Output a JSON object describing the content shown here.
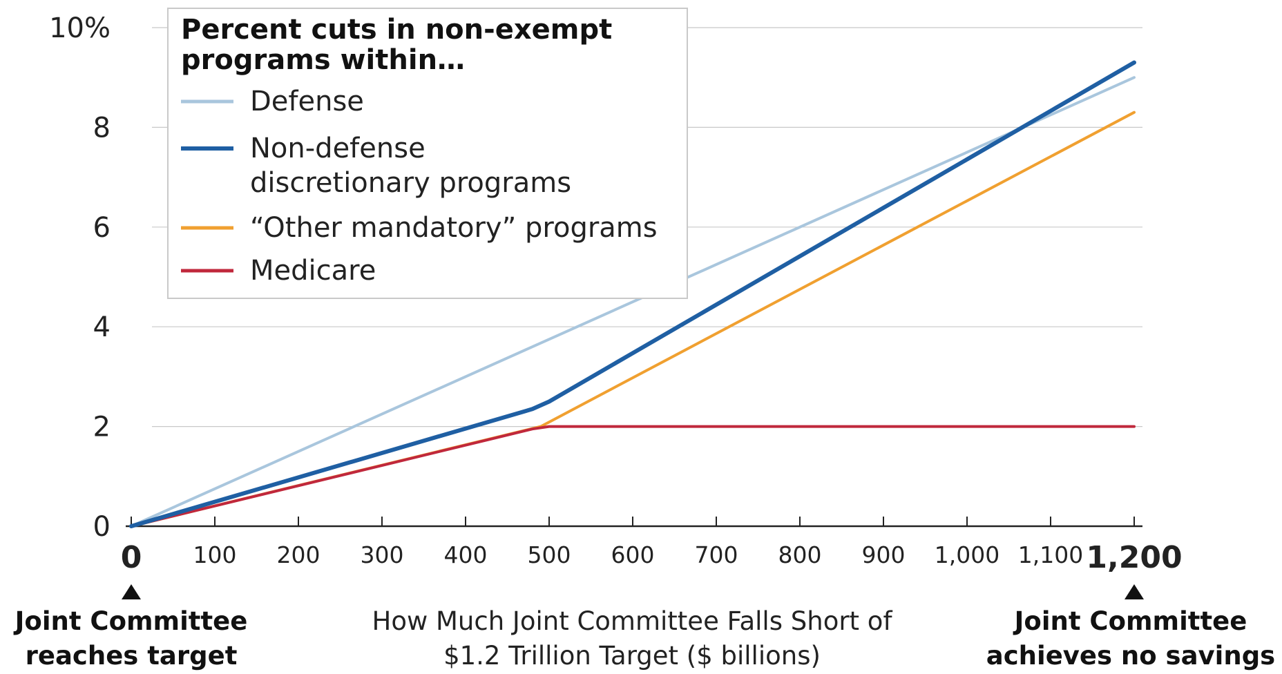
{
  "chart_data": {
    "type": "line",
    "legend_title": [
      "Percent cuts in non-exempt",
      "programs within…"
    ],
    "xlabel": [
      "How Much Joint Committee Falls Short of",
      "$1.2 Trillion Target ($ billions)"
    ],
    "xlim": [
      0,
      1200
    ],
    "ylim": [
      0,
      10
    ],
    "x_ticks": [
      {
        "value": 0,
        "label": "0",
        "bold": true
      },
      {
        "value": 100,
        "label": "100"
      },
      {
        "value": 200,
        "label": "200"
      },
      {
        "value": 300,
        "label": "300"
      },
      {
        "value": 400,
        "label": "400"
      },
      {
        "value": 500,
        "label": "500"
      },
      {
        "value": 600,
        "label": "600"
      },
      {
        "value": 700,
        "label": "700"
      },
      {
        "value": 800,
        "label": "800"
      },
      {
        "value": 900,
        "label": "900"
      },
      {
        "value": 1000,
        "label": "1,000"
      },
      {
        "value": 1100,
        "label": "1,100"
      },
      {
        "value": 1200,
        "label": "1,200",
        "bold": true
      }
    ],
    "y_ticks": [
      {
        "value": 0,
        "label": "0"
      },
      {
        "value": 2,
        "label": "2"
      },
      {
        "value": 4,
        "label": "4"
      },
      {
        "value": 6,
        "label": "6"
      },
      {
        "value": 8,
        "label": "8"
      },
      {
        "value": 10,
        "label": "10%"
      }
    ],
    "grid": true,
    "legend_position": "top-left",
    "series": [
      {
        "name": "Defense",
        "color": "#a9c6dd",
        "width": 4,
        "points": [
          [
            0,
            0
          ],
          [
            500,
            3.75
          ],
          [
            1200,
            9.0
          ]
        ]
      },
      {
        "name": "Non-defense discretionary programs",
        "name_lines": [
          "Non-defense",
          "discretionary programs"
        ],
        "color": "#1f5fa3",
        "width": 6,
        "points": [
          [
            0,
            0
          ],
          [
            480,
            2.35
          ],
          [
            500,
            2.5
          ],
          [
            1200,
            9.3
          ]
        ]
      },
      {
        "name": "“Other mandatory” programs",
        "color": "#f0a030",
        "width": 4,
        "points": [
          [
            0,
            0
          ],
          [
            490,
            2.0
          ],
          [
            1200,
            8.3
          ]
        ]
      },
      {
        "name": "Medicare",
        "color": "#c0283c",
        "width": 4,
        "points": [
          [
            0,
            0
          ],
          [
            480,
            1.95
          ],
          [
            500,
            2.0
          ],
          [
            1200,
            2.0
          ]
        ]
      }
    ],
    "annotations": [
      {
        "at_x": 0,
        "lines": [
          "Joint Committee",
          "reaches target"
        ]
      },
      {
        "at_x": 1200,
        "lines": [
          "Joint Committee",
          "achieves no savings"
        ]
      }
    ]
  }
}
